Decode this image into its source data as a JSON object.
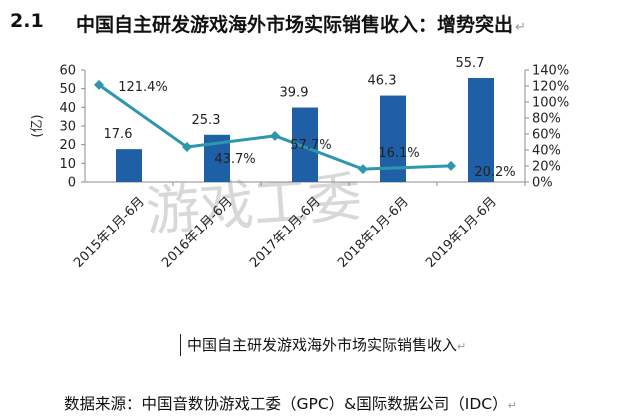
{
  "heading": {
    "number": "2.1",
    "title": "中国自主研发游戏海外市场实际销售收入：增势突出"
  },
  "caption": "中国自主研发游戏海外市场实际销售收入",
  "source": "数据来源：中国音数协游戏工委（GPC）&国际数据公司（IDC）",
  "paragraph_mark": "↵",
  "watermark": "游戏工委",
  "chart_data": {
    "type": "bar",
    "categories": [
      "2015年1月-6月",
      "2016年1月-6月",
      "2017年1月-6月",
      "2018年1月-6月",
      "2019年1月-6月"
    ],
    "ylabel": "(亿)",
    "ylim": [
      0,
      60
    ],
    "y_ticks": [
      "0",
      "10",
      "20",
      "30",
      "40",
      "50",
      "60"
    ],
    "y2lim": [
      0,
      140
    ],
    "y2_ticks": [
      "0%",
      "20%",
      "40%",
      "60%",
      "80%",
      "100%",
      "120%",
      "140%"
    ],
    "grid": false,
    "series": [
      {
        "type": "bar",
        "values": [
          17.6,
          25.3,
          39.9,
          46.3,
          55.7
        ],
        "labels": [
          "17.6",
          "25.3",
          "39.9",
          "46.3",
          "55.7"
        ],
        "color": "#1f5fa5"
      },
      {
        "type": "line",
        "axis": "right",
        "values": [
          121.4,
          43.7,
          57.7,
          16.1,
          20.2
        ],
        "labels": [
          "121.4%",
          "43.7%",
          "57.7%",
          "16.1%",
          "20.2%"
        ],
        "color": "#2e97ad"
      }
    ]
  }
}
